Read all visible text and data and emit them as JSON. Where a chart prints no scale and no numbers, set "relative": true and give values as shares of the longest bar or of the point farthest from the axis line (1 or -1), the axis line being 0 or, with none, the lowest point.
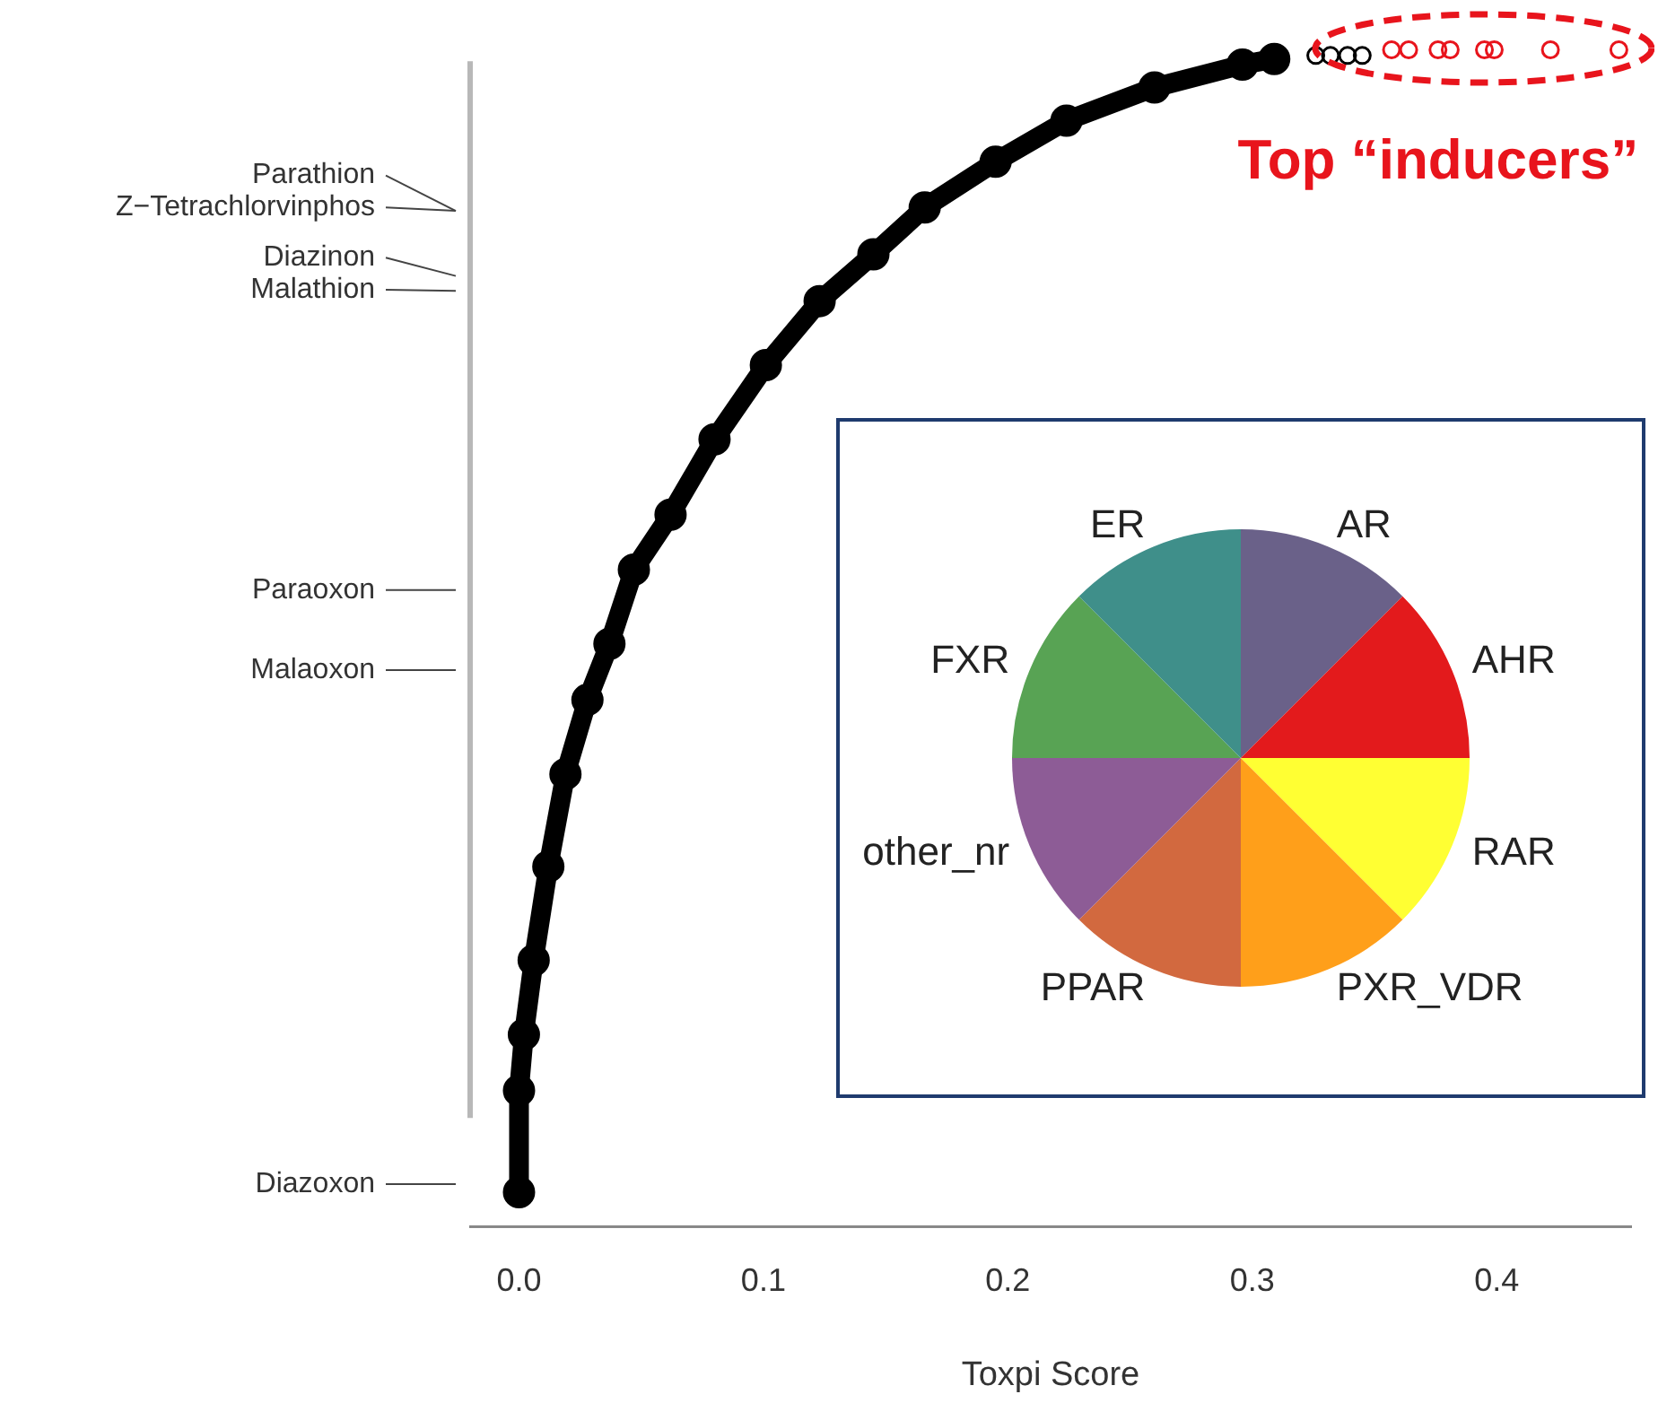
{
  "chart_data": [
    {
      "type": "scatter",
      "relative": true,
      "xlabel": "Toxpi Score",
      "xlim": [
        -0.02,
        0.455
      ],
      "xticks": [
        {
          "value": 0,
          "label": "0.0"
        },
        {
          "value": 0.1,
          "label": "0.1"
        },
        {
          "value": 0.2,
          "label": "0.2"
        },
        {
          "value": 0.3,
          "label": "0.3"
        },
        {
          "value": 0.4,
          "label": "0.4"
        }
      ],
      "grid": false,
      "legend": false,
      "tick_labels": "x",
      "marker": "circle",
      "series": [
        {
          "type": "line",
          "color": "#000000",
          "x": [
            0,
            0,
            0.002,
            0.006,
            0.012,
            0.019,
            0.028,
            0.037,
            0.047,
            0.062,
            0.08,
            0.101,
            0.123,
            0.145,
            0.166,
            0.195,
            0.224,
            0.26,
            0.296,
            0.309
          ],
          "values": [
            0,
            0.089,
            0.138,
            0.203,
            0.285,
            0.366,
            0.431,
            0.48,
            0.545,
            0.593,
            0.659,
            0.724,
            0.78,
            0.821,
            0.862,
            0.902,
            0.938,
            0.967,
            0.987,
            0.992
          ]
        },
        {
          "type": "scatter",
          "color": "#000000",
          "x": [
            0.326,
            0.332,
            0.339,
            0.345
          ],
          "values": [
            0.995,
            0.995,
            0.995,
            0.995
          ]
        },
        {
          "type": "scatter",
          "color": "#e8141c",
          "x": [
            0.357,
            0.364,
            0.376,
            0.381,
            0.395,
            0.399,
            0.422,
            0.45
          ],
          "values": [
            1,
            1,
            1,
            1,
            1,
            1,
            1,
            1
          ]
        }
      ],
      "annotations": [
        "Parathion",
        "Z−Tetrachlorvinphos",
        "Diazinon",
        "Malathion",
        "Paraoxon",
        "Malaoxon",
        "Diazoxon",
        {
          "text": "Top “inducers”",
          "x": 0.376,
          "y": 1
        }
      ]
    },
    {
      "type": "pie",
      "categories": [
        "AR",
        "AHR",
        "RAR",
        "PXR_VDR",
        "PPAR",
        "other_nr",
        "FXR",
        "ER"
      ],
      "values": [
        12.5,
        12.5,
        12.5,
        12.5,
        12.5,
        12.5,
        12.5,
        12.5
      ],
      "colors": [
        "#6a6189",
        "#e31a1c",
        "#ffff33",
        "#ff9f1a",
        "#d2693f",
        "#8d5c96",
        "#58a354",
        "#3f8f8a"
      ],
      "legend": false
    }
  ]
}
